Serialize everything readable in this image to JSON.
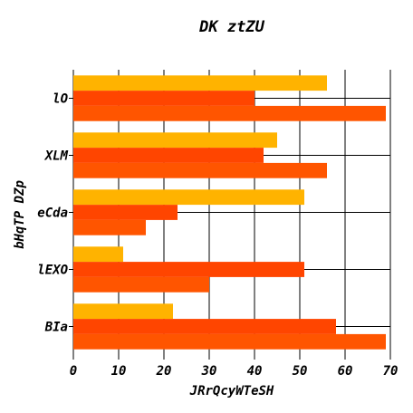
{
  "chart_data": {
    "type": "bar",
    "orientation": "horizontal",
    "title": "DK ztZU",
    "xlabel": "JRrQcyWTeSH",
    "ylabel": "bHqTP DZp",
    "categories": [
      "lO",
      "XLM",
      "eCda",
      "lEXO",
      "BIa"
    ],
    "series": [
      {
        "values": [
          56,
          45,
          51,
          11,
          22
        ],
        "color": "#FFB300"
      },
      {
        "values": [
          40,
          42,
          23,
          51,
          58
        ],
        "color": "#FF4500"
      },
      {
        "values": [
          69,
          56,
          16,
          30,
          69
        ],
        "color": "#FF5500"
      }
    ],
    "xlim": [
      0,
      70
    ],
    "xticks": [
      0,
      10,
      20,
      30,
      40,
      50,
      60,
      70
    ],
    "grid": true
  }
}
